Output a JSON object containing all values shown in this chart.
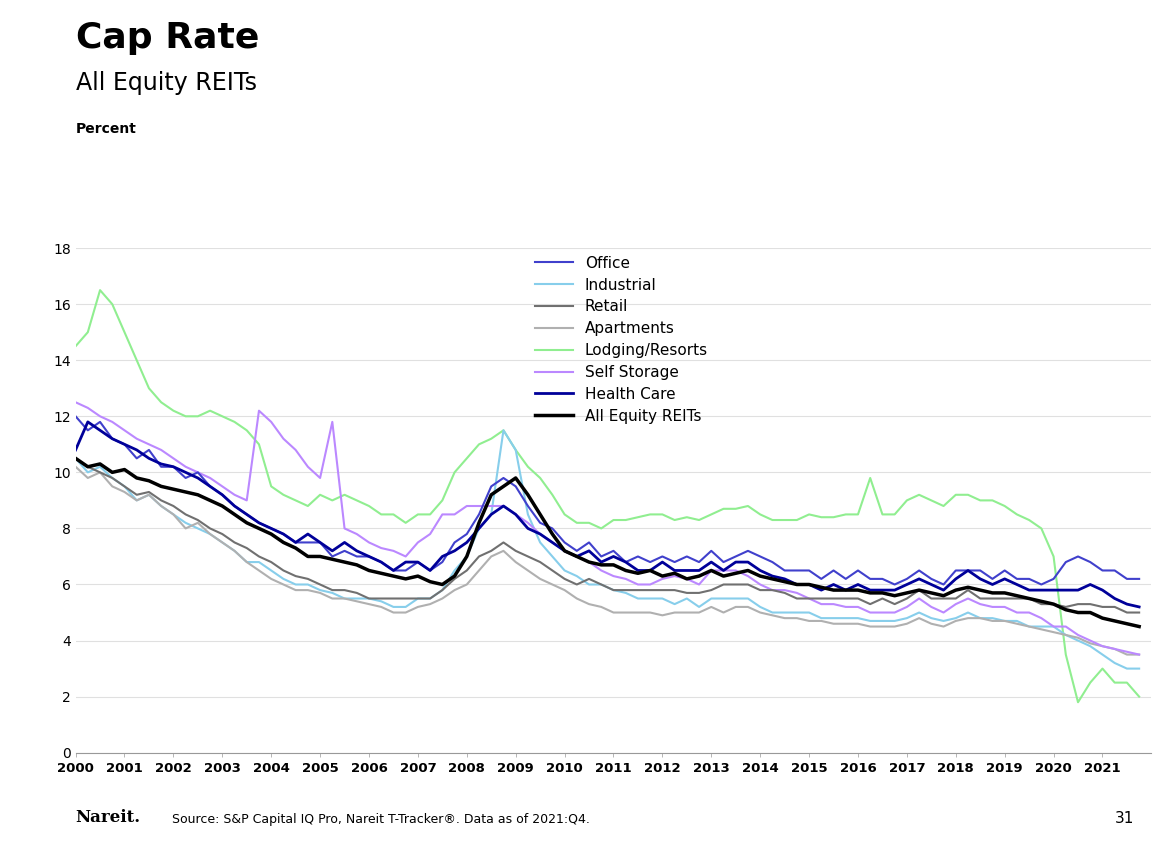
{
  "title": "Cap Rate",
  "subtitle": "All Equity REITs",
  "ylabel": "Percent",
  "source": "Source: S&P Capital IQ Pro, Nareit T-Tracker®. Data as of 2021:Q4.",
  "page_number": "31",
  "ylim": [
    0,
    18
  ],
  "yticks": [
    0,
    2,
    4,
    6,
    8,
    10,
    12,
    14,
    16,
    18
  ],
  "series_colors": {
    "Office": "#4040CC",
    "Industrial": "#87CEEB",
    "Retail": "#707070",
    "Apartments": "#B0B0B0",
    "Lodging/Resorts": "#90EE90",
    "Self Storage": "#BB88FF",
    "Health Care": "#000099",
    "All Equity REITs": "#000000"
  },
  "series_linewidths": {
    "Office": 1.5,
    "Industrial": 1.5,
    "Retail": 1.5,
    "Apartments": 1.5,
    "Lodging/Resorts": 1.5,
    "Self Storage": 1.5,
    "Health Care": 2.0,
    "All Equity REITs": 2.5
  }
}
